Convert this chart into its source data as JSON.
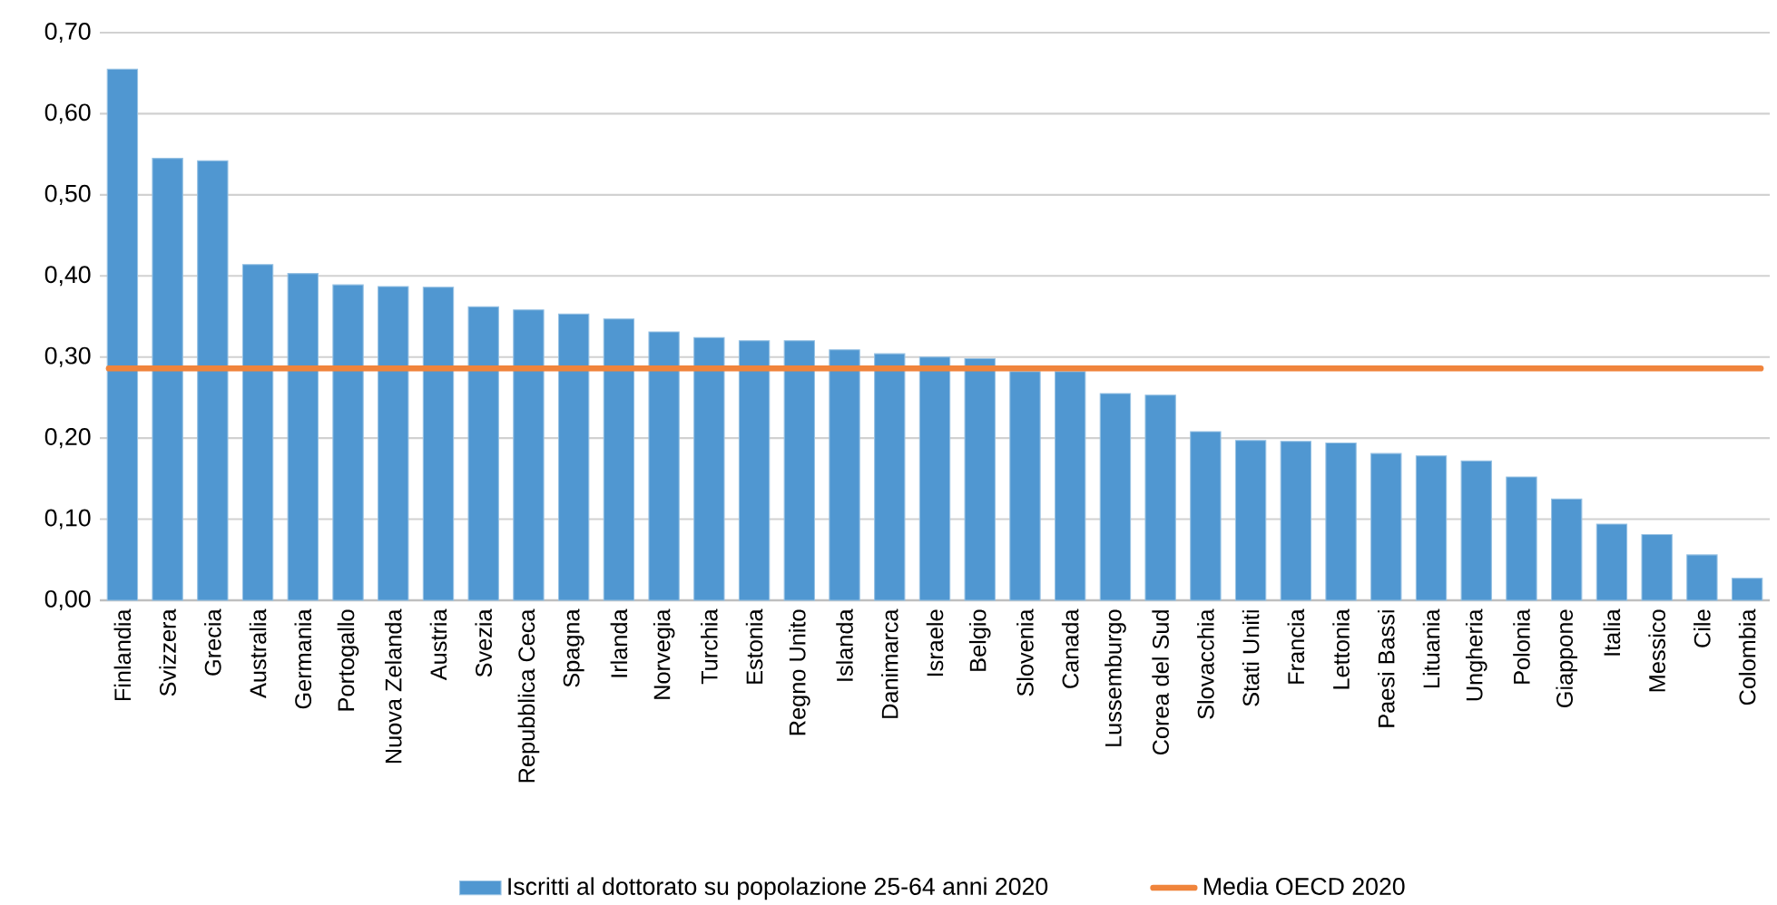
{
  "chart_data": {
    "type": "bar",
    "categories": [
      "Finlandia",
      "Svizzera",
      "Grecia",
      "Australia",
      "Germania",
      "Portogallo",
      "Nuova Zelanda",
      "Austria",
      "Svezia",
      "Repubblica Ceca",
      "Spagna",
      "Irlanda",
      "Norvegia",
      "Turchia",
      "Estonia",
      "Regno Unito",
      "Islanda",
      "Danimarca",
      "Israele",
      "Belgio",
      "Slovenia",
      "Canada",
      "Lussemburgo",
      "Corea del Sud",
      "Slovacchia",
      "Stati Uniti",
      "Francia",
      "Lettonia",
      "Paesi Bassi",
      "Lituania",
      "Ungheria",
      "Polonia",
      "Giappone",
      "Italia",
      "Messico",
      "Cile",
      "Colombia"
    ],
    "series": [
      {
        "name": "Iscritti al dottorato su popolazione 25-64 anni 2020",
        "color": "#5097d1",
        "values": [
          0.655,
          0.545,
          0.542,
          0.414,
          0.403,
          0.389,
          0.387,
          0.386,
          0.362,
          0.358,
          0.353,
          0.347,
          0.331,
          0.324,
          0.32,
          0.32,
          0.309,
          0.304,
          0.3,
          0.298,
          0.282,
          0.282,
          0.255,
          0.253,
          0.208,
          0.197,
          0.196,
          0.194,
          0.181,
          0.178,
          0.172,
          0.152,
          0.125,
          0.094,
          0.081,
          0.056,
          0.027
        ]
      }
    ],
    "ref_lines": [
      {
        "axis": "y",
        "value": 0.286,
        "label": "Media OECD 2020",
        "color": "#f0843c"
      }
    ],
    "ylim": [
      0,
      0.7
    ],
    "yticks": [
      {
        "value": 0,
        "label": "0,00"
      },
      {
        "value": 0.1,
        "label": "0,10"
      },
      {
        "value": 0.2,
        "label": "0,20"
      },
      {
        "value": 0.3,
        "label": "0,30"
      },
      {
        "value": 0.4,
        "label": "0,40"
      },
      {
        "value": 0.5,
        "label": "0,50"
      },
      {
        "value": 0.6,
        "label": "0,60"
      },
      {
        "value": 0.7,
        "label": "0,70"
      }
    ],
    "grid": "y",
    "legend": "bottom"
  }
}
